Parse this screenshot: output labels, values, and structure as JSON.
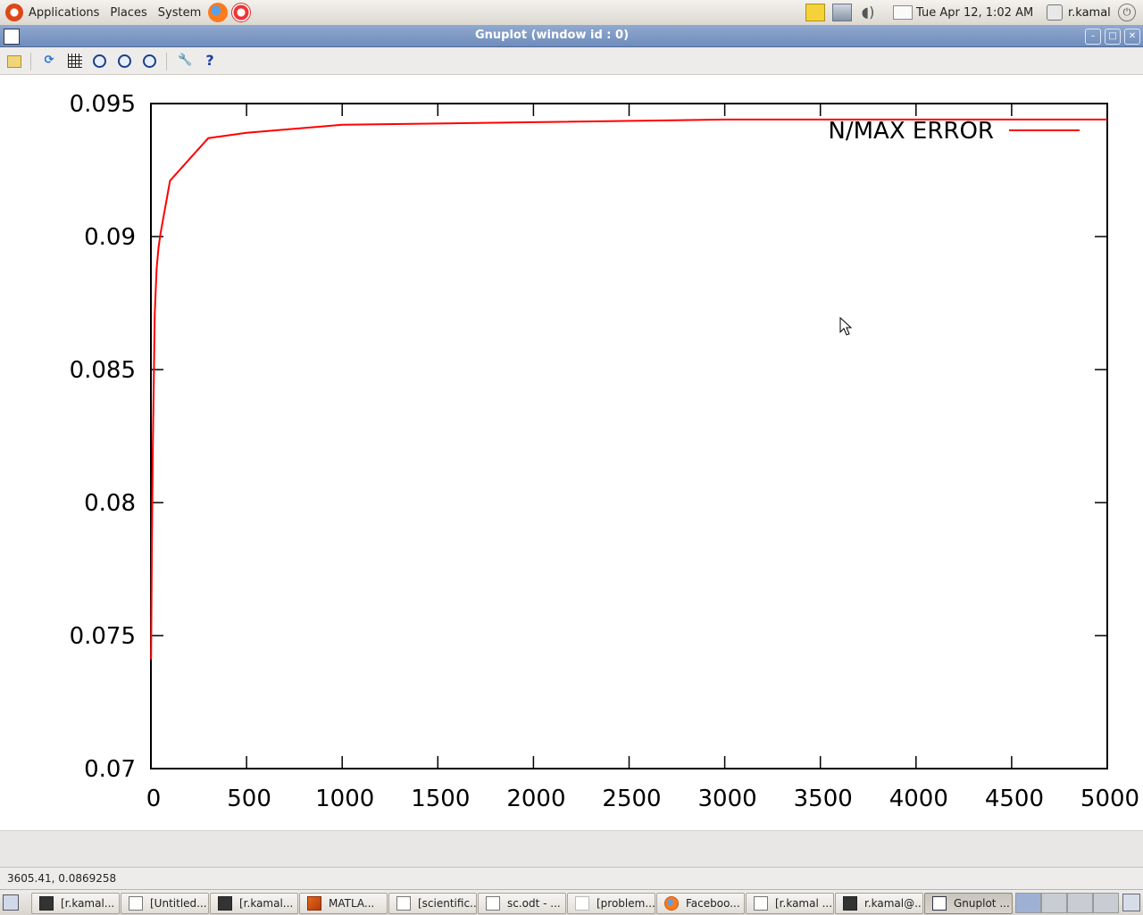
{
  "top_panel": {
    "menus": [
      "Applications",
      "Places",
      "System"
    ],
    "clock": "Tue Apr 12,  1:02 AM",
    "user": "r.kamal"
  },
  "window": {
    "title": "Gnuplot (window id : 0)"
  },
  "toolbar": {
    "icons": [
      "export-icon",
      "replot-icon",
      "grid-icon",
      "zoom-back-icon",
      "zoom-forward-icon",
      "autoscale-icon",
      "settings-icon",
      "help-icon"
    ]
  },
  "chart_data": {
    "type": "line",
    "title": "",
    "xlabel": "",
    "ylabel": "",
    "xlim": [
      0,
      5000
    ],
    "ylim": [
      0.07,
      0.095
    ],
    "x_ticks": [
      0,
      500,
      1000,
      1500,
      2000,
      2500,
      3000,
      3500,
      4000,
      4500,
      5000
    ],
    "x_tick_labels": [
      "0",
      "500",
      "1000",
      "1500",
      "2000",
      "2500",
      "3000",
      "3500",
      "4000",
      "4500",
      "5000"
    ],
    "y_ticks": [
      0.07,
      0.075,
      0.08,
      0.085,
      0.09,
      0.095
    ],
    "y_tick_labels": [
      "0.07",
      "0.075",
      "0.08",
      "0.085",
      "0.09",
      "0.095"
    ],
    "legend_position": "top-right",
    "series": [
      {
        "name": "N/MAX ERROR",
        "color": "#ff0000",
        "x": [
          1,
          5,
          10,
          20,
          30,
          40,
          50,
          100,
          200,
          300,
          400,
          500,
          1000,
          2000,
          3000,
          4000,
          5000
        ],
        "y": [
          0.0741,
          0.0785,
          0.082,
          0.0871,
          0.0888,
          0.0896,
          0.0901,
          0.0921,
          0.0929,
          0.0937,
          0.0938,
          0.0939,
          0.0942,
          0.0943,
          0.0944,
          0.0944,
          0.0944
        ]
      }
    ]
  },
  "status_bar": {
    "text": "3605.41,  0.0869258"
  },
  "taskbar": {
    "tasks": [
      {
        "label": "[r.kamal...",
        "icon": "terminal-icon"
      },
      {
        "label": "[Untitled...",
        "icon": "document-icon"
      },
      {
        "label": "[r.kamal...",
        "icon": "terminal-icon"
      },
      {
        "label": "MATLA...",
        "icon": "matlab-icon"
      },
      {
        "label": "[scientific...",
        "icon": "document-icon"
      },
      {
        "label": "sc.odt - ...",
        "icon": "document-icon"
      },
      {
        "label": "[problem...",
        "icon": "blank-icon"
      },
      {
        "label": "Faceboo...",
        "icon": "firefox-icon"
      },
      {
        "label": "[r.kamal ...",
        "icon": "document-icon"
      },
      {
        "label": "r.kamal@...",
        "icon": "terminal-icon"
      },
      {
        "label": "Gnuplot ...",
        "icon": "gnuplot-icon"
      }
    ]
  }
}
